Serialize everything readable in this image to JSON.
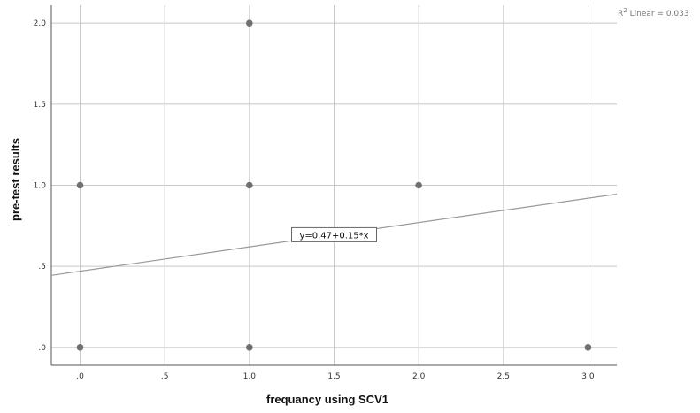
{
  "chart_data": {
    "type": "scatter",
    "xlabel": "frequancy using SCV1",
    "ylabel": "pre-test results",
    "xlim": [
      -0.17,
      3.17
    ],
    "ylim": [
      -0.11,
      2.11
    ],
    "xticks": [
      0,
      0.5,
      1.0,
      1.5,
      2.0,
      2.5,
      3.0
    ],
    "xtick_labels": [
      ".0",
      ".5",
      "1.0",
      "1.5",
      "2.0",
      "2.5",
      "3.0"
    ],
    "yticks": [
      0,
      0.5,
      1.0,
      1.5,
      2.0
    ],
    "ytick_labels": [
      ".0",
      ".5",
      "1.0",
      "1.5",
      "2.0"
    ],
    "grid": true,
    "points": [
      {
        "x": 0,
        "y": 1
      },
      {
        "x": 0,
        "y": 0
      },
      {
        "x": 1,
        "y": 2
      },
      {
        "x": 1,
        "y": 1
      },
      {
        "x": 1,
        "y": 0
      },
      {
        "x": 2,
        "y": 1
      },
      {
        "x": 3,
        "y": 0
      }
    ],
    "fit_line": {
      "intercept": 0.47,
      "slope": 0.15,
      "label": "y=0.47+0.15*x"
    },
    "r2_label_prefix": "R",
    "r2_label_sup": "2",
    "r2_label_rest": " Linear = 0.033",
    "colors": {
      "points": "#707070",
      "grid": "#c8c8c8",
      "fit_line": "#999999"
    }
  }
}
